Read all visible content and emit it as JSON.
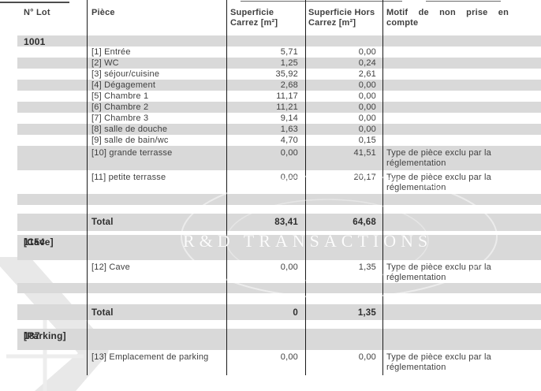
{
  "table": {
    "headers": [
      "N° Lot",
      "Pièce",
      "Superficie Carrez [m²]",
      "Superficie Hors Carrez [m²]",
      "Motif de non prise en compte"
    ],
    "rows": [
      {
        "type": "lot",
        "lot": "1001",
        "h": 14,
        "shade": true
      },
      {
        "type": "piece",
        "piece": "[1] Entrée",
        "carrez": "5,71",
        "hors": "0,00",
        "h": 14,
        "shade": false
      },
      {
        "type": "piece",
        "piece": "[2] WC",
        "carrez": "1,25",
        "hors": "0,24",
        "h": 14,
        "shade": true
      },
      {
        "type": "piece",
        "piece": "[3] séjour/cuisine",
        "carrez": "35,92",
        "hors": "2,61",
        "h": 14,
        "shade": false
      },
      {
        "type": "piece",
        "piece": "[4] Dégagement",
        "carrez": "2,68",
        "hors": "0,00",
        "h": 14,
        "shade": true
      },
      {
        "type": "piece",
        "piece": "[5] Chambre 1",
        "carrez": "11,17",
        "hors": "0,00",
        "h": 14,
        "shade": false
      },
      {
        "type": "piece",
        "piece": "[6] Chambre 2",
        "carrez": "11,21",
        "hors": "0,00",
        "h": 14,
        "shade": true
      },
      {
        "type": "piece",
        "piece": "[7] Chambre 3",
        "carrez": "9,14",
        "hors": "0,00",
        "h": 14,
        "shade": false
      },
      {
        "type": "piece",
        "piece": "[8] salle de douche",
        "carrez": "1,63",
        "hors": "0,00",
        "h": 14,
        "shade": true
      },
      {
        "type": "piece",
        "piece": "[9] salle de bain/wc",
        "carrez": "4,70",
        "hors": "0,15",
        "h": 14,
        "shade": false
      },
      {
        "type": "piece",
        "piece": "[10] grande terrasse",
        "carrez": "0,00",
        "hors": "41,51",
        "motif": "Type de pièce exclu par la réglementation",
        "h": 31,
        "shade": true
      },
      {
        "type": "piece",
        "piece": "[11] petite terrasse",
        "carrez": "0,00",
        "hors": "20,17",
        "motif": "Type de pièce exclu par la réglementation",
        "h": 30,
        "shade": false
      },
      {
        "type": "empty",
        "h": 14,
        "shade": true
      },
      {
        "type": "empty",
        "h": 11,
        "shade": false
      },
      {
        "type": "total",
        "label": "Total",
        "carrez": "83,41",
        "hors": "64,68",
        "h": 22,
        "shade": true
      },
      {
        "type": "empty",
        "h": 5,
        "shade": false
      },
      {
        "type": "lot",
        "lot": "1154",
        "lot_sub": "[Cave]",
        "h": 32,
        "shade": true
      },
      {
        "type": "piece",
        "piece": "[12] Cave",
        "carrez": "0,00",
        "hors": "1,35",
        "motif": "Type de pièce exclu par la réglementation",
        "h": 29,
        "shade": false
      },
      {
        "type": "empty",
        "h": 13,
        "shade": true
      },
      {
        "type": "empty",
        "h": 14,
        "shade": false
      },
      {
        "type": "total",
        "label": "Total",
        "carrez": "0",
        "hors": "1,35",
        "h": 20,
        "shade": true
      },
      {
        "type": "empty",
        "h": 11,
        "shade": false
      },
      {
        "type": "lot",
        "lot": "187",
        "lot_sub": "[Parking]",
        "h": 27,
        "shade": true
      },
      {
        "type": "piece",
        "piece": "[13] Emplacement de parking",
        "carrez": "0,00",
        "hors": "0,00",
        "motif": "Type de pièce exclu par la réglementation",
        "h": 32,
        "shade": false
      }
    ]
  },
  "watermark": {
    "text": "R&D TRANSACTIONS"
  },
  "colors": {
    "band": "#d9d9d9",
    "text": "#3f3f3f",
    "bold": "#2e2e2e",
    "border": "#1a1a1a",
    "decor": "#e8e8e8"
  }
}
